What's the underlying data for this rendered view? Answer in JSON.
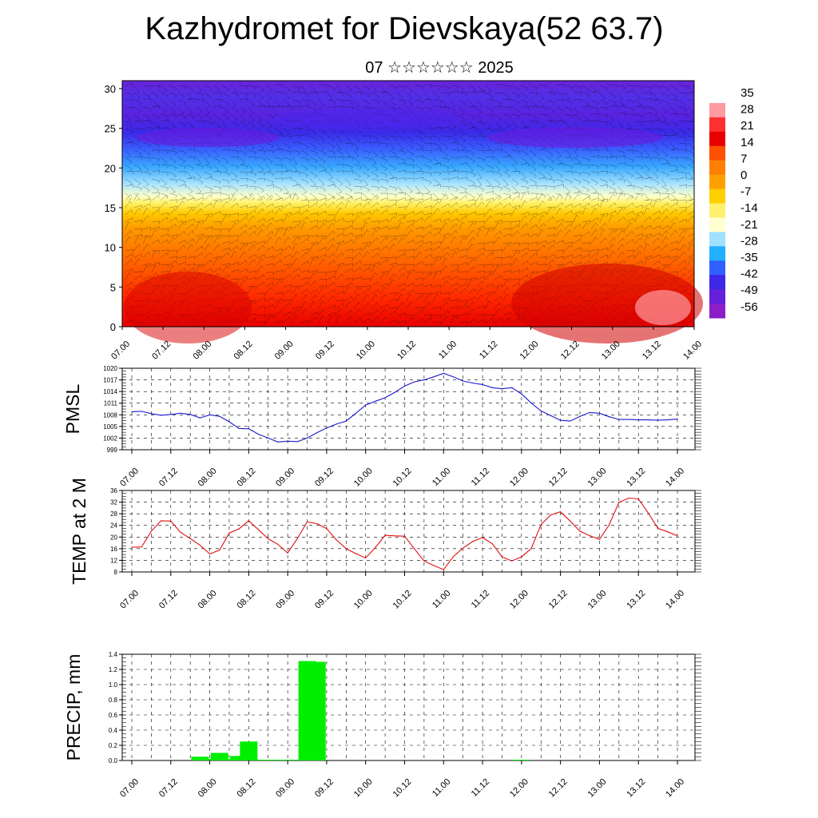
{
  "title": "Kazhydromet for Dievskaya(52 63.7)",
  "subtitle": "07 ☆☆☆☆☆☆ 2025",
  "time_ticks": [
    "07.00",
    "07.12",
    "08.00",
    "08.12",
    "09.00",
    "09.12",
    "10.00",
    "10.12",
    "11.00",
    "11.12",
    "12.00",
    "12.12",
    "13.00",
    "13.12",
    "14.00"
  ],
  "chart_data": [
    {
      "type": "heatmap",
      "title": "",
      "xlabel": "",
      "ylabel": "",
      "y_ticks": [
        0,
        5,
        10,
        15,
        20,
        25,
        30
      ],
      "ylim": [
        0,
        31
      ],
      "colorbar": {
        "labels": [
          "35",
          "28",
          "21",
          "14",
          "7",
          "0",
          "-7",
          "-14",
          "-21",
          "-28",
          "-35",
          "-42",
          "-49",
          "-56"
        ],
        "colors": [
          "#ffffff",
          "#ff9aa0",
          "#ff3030",
          "#e80000",
          "#ff5000",
          "#ff8000",
          "#ffa000",
          "#ffd000",
          "#fff070",
          "#ffffd0",
          "#a0e0ff",
          "#20b0ff",
          "#3060ff",
          "#3c28e6",
          "#6420dc",
          "#8c1ec8"
        ]
      },
      "note_overlay": "wind barbs"
    },
    {
      "type": "line",
      "ylabel": "PMSL",
      "ylim": [
        999,
        1020
      ],
      "y_ticks": [
        999,
        1002,
        1005,
        1008,
        1011,
        1014,
        1017,
        1020
      ],
      "x_hours": [
        0,
        3,
        6,
        9,
        12,
        15,
        18,
        21,
        24,
        27,
        30,
        33,
        36,
        39,
        42,
        45,
        48,
        51,
        54,
        57,
        60,
        63,
        66,
        69,
        72,
        75,
        78,
        81,
        84,
        87,
        90,
        93,
        96,
        99,
        102,
        105,
        108,
        111,
        114,
        117,
        120,
        123,
        126,
        129,
        132,
        135,
        138,
        141,
        144,
        147,
        150,
        153,
        156,
        159,
        162,
        165,
        168
      ],
      "values": [
        1008.8,
        1008.9,
        1008.3,
        1007.9,
        1008.1,
        1008.4,
        1008.1,
        1007.2,
        1008.0,
        1007.6,
        1006.2,
        1004.5,
        1004.4,
        1003.0,
        1002.0,
        1001.0,
        1001.2,
        1001.1,
        1002.0,
        1003.4,
        1004.6,
        1005.6,
        1006.4,
        1008.4,
        1010.5,
        1011.5,
        1012.4,
        1013.8,
        1015.4,
        1016.5,
        1017.0,
        1017.8,
        1018.7,
        1017.8,
        1016.7,
        1016.2,
        1015.8,
        1015.0,
        1014.7,
        1015.0,
        1013.4,
        1011.0,
        1009.0,
        1007.8,
        1006.6,
        1006.4,
        1007.6,
        1008.6,
        1008.4,
        1007.5,
        1006.8,
        1006.8,
        1006.7,
        1006.7,
        1006.6,
        1006.7,
        1006.9
      ],
      "color": "#1a1ad0"
    },
    {
      "type": "line",
      "ylabel": "TEMP at 2 M",
      "ylim": [
        8,
        36
      ],
      "y_ticks": [
        8,
        12,
        16,
        20,
        24,
        28,
        32,
        36
      ],
      "x_hours": [
        0,
        3,
        6,
        9,
        12,
        15,
        18,
        21,
        24,
        27,
        30,
        33,
        36,
        39,
        42,
        45,
        48,
        51,
        54,
        57,
        60,
        63,
        66,
        69,
        72,
        75,
        78,
        81,
        84,
        87,
        90,
        93,
        96,
        99,
        102,
        105,
        108,
        111,
        114,
        117,
        120,
        123,
        126,
        129,
        132,
        135,
        138,
        141,
        144,
        147,
        150,
        153,
        156,
        159,
        162,
        165,
        168
      ],
      "values": [
        16.5,
        16.6,
        22.0,
        25.6,
        25.5,
        21.6,
        19.5,
        17.2,
        14.2,
        15.5,
        21.4,
        22.8,
        25.6,
        22.5,
        19.4,
        17.5,
        14.5,
        19.5,
        25.2,
        24.6,
        22.9,
        19.0,
        16.0,
        14.3,
        12.8,
        16.4,
        20.6,
        20.4,
        20.3,
        16.0,
        11.8,
        10.2,
        8.8,
        13.3,
        16.2,
        18.5,
        19.8,
        17.7,
        13.2,
        11.8,
        13.2,
        16.1,
        24.3,
        27.6,
        28.7,
        25.5,
        22.0,
        20.5,
        19.2,
        24.2,
        31.9,
        33.4,
        33.1,
        28.3,
        23.0,
        21.8,
        20.4
      ],
      "color": "#e01010"
    },
    {
      "type": "bar",
      "ylabel": "PRECIP, mm",
      "ylim": [
        0,
        1.4
      ],
      "y_ticks": [
        "0.0",
        "0.2",
        "0.4",
        "0.6",
        "0.8",
        "1.0",
        "1.2",
        "1.4"
      ],
      "x_hours": [
        21,
        24,
        27,
        30,
        33,
        36,
        39,
        42,
        45,
        48,
        51,
        54,
        57,
        60,
        120
      ],
      "values": [
        0.05,
        0.02,
        0.1,
        0.02,
        0.06,
        0.25,
        0.01,
        0.01,
        0.0,
        0.01,
        0.0,
        1.31,
        1.3,
        0.0,
        0.01
      ],
      "color": "#00ee00"
    }
  ]
}
